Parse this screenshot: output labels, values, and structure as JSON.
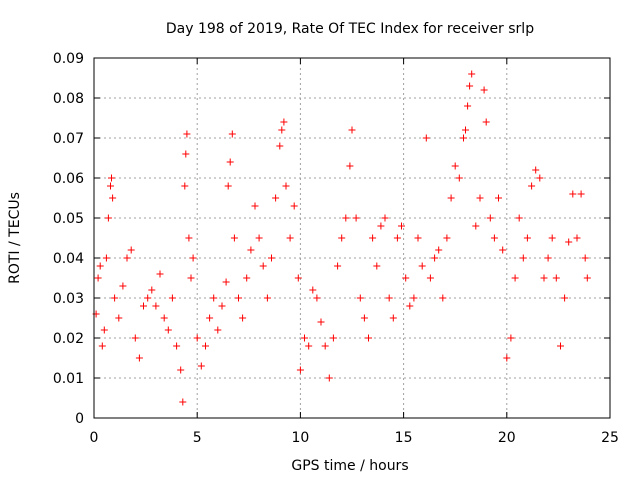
{
  "chart_data": {
    "type": "scatter",
    "title": "Day 198 of 2019, Rate Of TEC Index for receiver srlp",
    "xlabel": "GPS time / hours",
    "ylabel": "ROTI / TECUs",
    "xlim": [
      0,
      25
    ],
    "ylim": [
      0,
      0.09
    ],
    "xticks": [
      0,
      5,
      10,
      15,
      20,
      25
    ],
    "xtick_labels": [
      "0",
      "5",
      "10",
      "15",
      "20",
      "25"
    ],
    "yticks": [
      0,
      0.01,
      0.02,
      0.03,
      0.04,
      0.05,
      0.06,
      0.07,
      0.08,
      0.09
    ],
    "ytick_labels": [
      "0",
      "0.01",
      "0.02",
      "0.03",
      "0.04",
      "0.05",
      "0.06",
      "0.07",
      "0.08",
      "0.09"
    ],
    "grid": true,
    "marker": "+",
    "color": "#ff0000",
    "series": [
      {
        "name": "ROTI",
        "points": [
          [
            0.1,
            0.026
          ],
          [
            0.2,
            0.035
          ],
          [
            0.3,
            0.038
          ],
          [
            0.4,
            0.018
          ],
          [
            0.5,
            0.022
          ],
          [
            0.6,
            0.04
          ],
          [
            0.7,
            0.05
          ],
          [
            0.8,
            0.058
          ],
          [
            0.85,
            0.06
          ],
          [
            0.9,
            0.055
          ],
          [
            1.0,
            0.03
          ],
          [
            1.2,
            0.025
          ],
          [
            1.4,
            0.033
          ],
          [
            1.6,
            0.04
          ],
          [
            1.8,
            0.042
          ],
          [
            2.0,
            0.02
          ],
          [
            2.2,
            0.015
          ],
          [
            2.4,
            0.028
          ],
          [
            2.6,
            0.03
          ],
          [
            2.8,
            0.032
          ],
          [
            3.0,
            0.028
          ],
          [
            3.2,
            0.036
          ],
          [
            3.4,
            0.025
          ],
          [
            3.6,
            0.022
          ],
          [
            3.8,
            0.03
          ],
          [
            4.0,
            0.018
          ],
          [
            4.2,
            0.012
          ],
          [
            4.3,
            0.004
          ],
          [
            4.4,
            0.058
          ],
          [
            4.45,
            0.066
          ],
          [
            4.5,
            0.071
          ],
          [
            4.6,
            0.045
          ],
          [
            4.7,
            0.035
          ],
          [
            4.8,
            0.04
          ],
          [
            5.0,
            0.02
          ],
          [
            5.2,
            0.013
          ],
          [
            5.4,
            0.018
          ],
          [
            5.6,
            0.025
          ],
          [
            5.8,
            0.03
          ],
          [
            6.0,
            0.022
          ],
          [
            6.2,
            0.028
          ],
          [
            6.4,
            0.034
          ],
          [
            6.5,
            0.058
          ],
          [
            6.6,
            0.064
          ],
          [
            6.7,
            0.071
          ],
          [
            6.8,
            0.045
          ],
          [
            7.0,
            0.03
          ],
          [
            7.2,
            0.025
          ],
          [
            7.4,
            0.035
          ],
          [
            7.6,
            0.042
          ],
          [
            7.8,
            0.053
          ],
          [
            8.0,
            0.045
          ],
          [
            8.2,
            0.038
          ],
          [
            8.4,
            0.03
          ],
          [
            8.6,
            0.04
          ],
          [
            8.8,
            0.055
          ],
          [
            9.0,
            0.068
          ],
          [
            9.1,
            0.072
          ],
          [
            9.2,
            0.074
          ],
          [
            9.3,
            0.058
          ],
          [
            9.5,
            0.045
          ],
          [
            9.7,
            0.053
          ],
          [
            9.9,
            0.035
          ],
          [
            10.0,
            0.012
          ],
          [
            10.2,
            0.02
          ],
          [
            10.4,
            0.018
          ],
          [
            10.6,
            0.032
          ],
          [
            10.8,
            0.03
          ],
          [
            11.0,
            0.024
          ],
          [
            11.2,
            0.018
          ],
          [
            11.4,
            0.01
          ],
          [
            11.6,
            0.02
          ],
          [
            11.8,
            0.038
          ],
          [
            12.0,
            0.045
          ],
          [
            12.2,
            0.05
          ],
          [
            12.4,
            0.063
          ],
          [
            12.5,
            0.072
          ],
          [
            12.7,
            0.05
          ],
          [
            12.9,
            0.03
          ],
          [
            13.1,
            0.025
          ],
          [
            13.3,
            0.02
          ],
          [
            13.5,
            0.045
          ],
          [
            13.7,
            0.038
          ],
          [
            13.9,
            0.048
          ],
          [
            14.1,
            0.05
          ],
          [
            14.3,
            0.03
          ],
          [
            14.5,
            0.025
          ],
          [
            14.7,
            0.045
          ],
          [
            14.9,
            0.048
          ],
          [
            15.1,
            0.035
          ],
          [
            15.3,
            0.028
          ],
          [
            15.5,
            0.03
          ],
          [
            15.7,
            0.045
          ],
          [
            15.9,
            0.038
          ],
          [
            16.1,
            0.07
          ],
          [
            16.3,
            0.035
          ],
          [
            16.5,
            0.04
          ],
          [
            16.7,
            0.042
          ],
          [
            16.9,
            0.03
          ],
          [
            17.1,
            0.045
          ],
          [
            17.3,
            0.055
          ],
          [
            17.5,
            0.063
          ],
          [
            17.7,
            0.06
          ],
          [
            17.9,
            0.07
          ],
          [
            18.0,
            0.072
          ],
          [
            18.1,
            0.078
          ],
          [
            18.2,
            0.083
          ],
          [
            18.3,
            0.086
          ],
          [
            18.5,
            0.048
          ],
          [
            18.7,
            0.055
          ],
          [
            18.9,
            0.082
          ],
          [
            19.0,
            0.074
          ],
          [
            19.2,
            0.05
          ],
          [
            19.4,
            0.045
          ],
          [
            19.6,
            0.055
          ],
          [
            19.8,
            0.042
          ],
          [
            20.0,
            0.015
          ],
          [
            20.2,
            0.02
          ],
          [
            20.4,
            0.035
          ],
          [
            20.6,
            0.05
          ],
          [
            20.8,
            0.04
          ],
          [
            21.0,
            0.045
          ],
          [
            21.2,
            0.058
          ],
          [
            21.4,
            0.062
          ],
          [
            21.6,
            0.06
          ],
          [
            21.8,
            0.035
          ],
          [
            22.0,
            0.04
          ],
          [
            22.2,
            0.045
          ],
          [
            22.4,
            0.035
          ],
          [
            22.6,
            0.018
          ],
          [
            22.8,
            0.03
          ],
          [
            23.0,
            0.044
          ],
          [
            23.2,
            0.056
          ],
          [
            23.4,
            0.045
          ],
          [
            23.6,
            0.056
          ],
          [
            23.8,
            0.04
          ],
          [
            23.9,
            0.035
          ]
        ]
      }
    ]
  }
}
